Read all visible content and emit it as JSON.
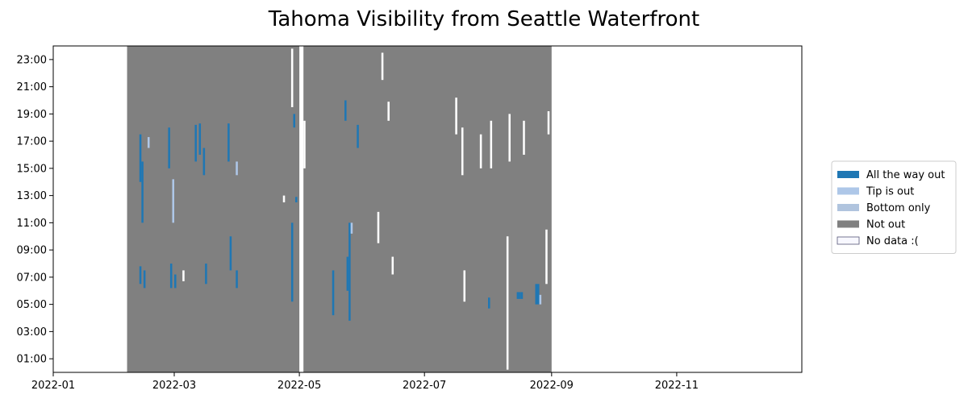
{
  "chart_data": {
    "type": "heatmap",
    "title": "Tahoma Visibility from Seattle Waterfront",
    "x_axis": {
      "type": "date",
      "range": [
        "2022-01-01",
        "2022-12-31"
      ],
      "tick_labels": [
        "2022-01",
        "2022-03",
        "2022-05",
        "2022-07",
        "2022-09",
        "2022-11"
      ],
      "tick_dates": [
        "2022-01-01",
        "2022-03-01",
        "2022-05-01",
        "2022-07-01",
        "2022-09-01",
        "2022-11-01"
      ]
    },
    "y_axis": {
      "unit": "hour of day",
      "range": [
        0,
        24
      ],
      "tick_labels": [
        "01:00",
        "03:00",
        "05:00",
        "07:00",
        "09:00",
        "11:00",
        "13:00",
        "15:00",
        "17:00",
        "19:00",
        "21:00",
        "23:00"
      ],
      "tick_values": [
        1,
        3,
        5,
        7,
        9,
        11,
        13,
        15,
        17,
        19,
        21,
        23
      ]
    },
    "legend": {
      "placement": "right",
      "entries": [
        {
          "label": "All the way out",
          "color": "#1f77b4"
        },
        {
          "label": "Tip is out",
          "color": "#aec7e8"
        },
        {
          "label": "Bottom only",
          "color": "#b0c4de"
        },
        {
          "label": "Not out",
          "color": "#808080"
        },
        {
          "label": "No data :(",
          "color": "#f8f8ff"
        }
      ]
    },
    "base_regions": [
      {
        "category": "Not out",
        "start": "2022-02-06",
        "end": "2022-08-31",
        "hour_start": 0,
        "hour_end": 24
      }
    ],
    "no_data_gaps": [
      {
        "start": "2022-05-01",
        "end": "2022-05-03",
        "hour_start": 0,
        "hour_end": 24
      }
    ],
    "cells": [
      {
        "date": "2022-02-12",
        "hour_start": 14,
        "hour_end": 17.5,
        "category": "All the way out"
      },
      {
        "date": "2022-02-13",
        "hour_start": 11,
        "hour_end": 15.5,
        "category": "All the way out"
      },
      {
        "date": "2022-02-12",
        "hour_start": 6.5,
        "hour_end": 7.8,
        "category": "All the way out"
      },
      {
        "date": "2022-02-14",
        "hour_start": 6.2,
        "hour_end": 7.5,
        "category": "All the way out"
      },
      {
        "date": "2022-02-16",
        "hour_start": 16.5,
        "hour_end": 17.3,
        "category": "Tip is out"
      },
      {
        "date": "2022-02-26",
        "hour_start": 15,
        "hour_end": 18,
        "category": "All the way out"
      },
      {
        "date": "2022-02-27",
        "hour_start": 6.2,
        "hour_end": 8,
        "category": "All the way out"
      },
      {
        "date": "2022-02-28",
        "hour_start": 11,
        "hour_end": 14.2,
        "category": "Tip is out"
      },
      {
        "date": "2022-03-01",
        "hour_start": 6.2,
        "hour_end": 7.2,
        "category": "All the way out"
      },
      {
        "date": "2022-03-11",
        "hour_start": 15.5,
        "hour_end": 18.2,
        "category": "All the way out"
      },
      {
        "date": "2022-03-13",
        "hour_start": 16,
        "hour_end": 18.3,
        "category": "All the way out"
      },
      {
        "date": "2022-03-15",
        "hour_start": 14.5,
        "hour_end": 16.5,
        "category": "All the way out"
      },
      {
        "date": "2022-03-16",
        "hour_start": 6.5,
        "hour_end": 8,
        "category": "All the way out"
      },
      {
        "date": "2022-03-27",
        "hour_start": 15.5,
        "hour_end": 18.3,
        "category": "All the way out"
      },
      {
        "date": "2022-03-28",
        "hour_start": 7.5,
        "hour_end": 10,
        "category": "All the way out"
      },
      {
        "date": "2022-03-31",
        "hour_start": 6.2,
        "hour_end": 7.5,
        "category": "All the way out"
      },
      {
        "date": "2022-03-31",
        "hour_start": 14.5,
        "hour_end": 15.5,
        "category": "Tip is out"
      },
      {
        "date": "2022-04-27",
        "hour_start": 5.2,
        "hour_end": 11,
        "category": "All the way out"
      },
      {
        "date": "2022-04-28",
        "hour_start": 18,
        "hour_end": 19,
        "category": "All the way out"
      },
      {
        "date": "2022-04-29",
        "hour_start": 12.5,
        "hour_end": 12.9,
        "category": "All the way out"
      },
      {
        "date": "2022-05-17",
        "hour_start": 4.2,
        "hour_end": 7.5,
        "category": "All the way out"
      },
      {
        "date": "2022-05-23",
        "hour_start": 18.5,
        "hour_end": 20,
        "category": "All the way out"
      },
      {
        "date": "2022-05-24",
        "hour_start": 6,
        "hour_end": 8.5,
        "category": "All the way out"
      },
      {
        "date": "2022-05-25",
        "hour_start": 3.8,
        "hour_end": 11,
        "category": "All the way out"
      },
      {
        "date": "2022-05-26",
        "hour_start": 10.2,
        "hour_end": 11,
        "category": "Tip is out"
      },
      {
        "date": "2022-05-29",
        "hour_start": 16.5,
        "hour_end": 18.2,
        "category": "All the way out"
      },
      {
        "date": "2022-08-01",
        "hour_start": 4.7,
        "hour_end": 5.5,
        "category": "All the way out"
      },
      {
        "date": "2022-08-15",
        "hour_start": 5.4,
        "hour_end": 5.9,
        "category": "All the way out"
      },
      {
        "date": "2022-08-16",
        "hour_start": 5.4,
        "hour_end": 5.9,
        "category": "All the way out"
      },
      {
        "date": "2022-08-17",
        "hour_start": 5.4,
        "hour_end": 5.9,
        "category": "All the way out"
      },
      {
        "date": "2022-08-24",
        "hour_start": 5.0,
        "hour_end": 6.5,
        "category": "All the way out"
      },
      {
        "date": "2022-08-25",
        "hour_start": 5.0,
        "hour_end": 6.5,
        "category": "All the way out"
      },
      {
        "date": "2022-08-26",
        "hour_start": 5.0,
        "hour_end": 5.7,
        "category": "Tip is out"
      },
      {
        "date": "2022-03-05",
        "hour_start": 6.7,
        "hour_end": 7.5,
        "category": "No data :("
      },
      {
        "date": "2022-04-23",
        "hour_start": 12.5,
        "hour_end": 13,
        "category": "No data :("
      },
      {
        "date": "2022-04-27",
        "hour_start": 19.5,
        "hour_end": 23.8,
        "category": "No data :("
      },
      {
        "date": "2022-05-03",
        "hour_start": 15,
        "hour_end": 18.5,
        "category": "No data :("
      },
      {
        "date": "2022-06-08",
        "hour_start": 9.5,
        "hour_end": 11.8,
        "category": "No data :("
      },
      {
        "date": "2022-06-10",
        "hour_start": 21.5,
        "hour_end": 23.5,
        "category": "No data :("
      },
      {
        "date": "2022-06-13",
        "hour_start": 18.5,
        "hour_end": 19.9,
        "category": "No data :("
      },
      {
        "date": "2022-06-15",
        "hour_start": 7.2,
        "hour_end": 8.5,
        "category": "No data :("
      },
      {
        "date": "2022-07-16",
        "hour_start": 17.5,
        "hour_end": 20.2,
        "category": "No data :("
      },
      {
        "date": "2022-07-19",
        "hour_start": 14.5,
        "hour_end": 18,
        "category": "No data :("
      },
      {
        "date": "2022-07-20",
        "hour_start": 5.2,
        "hour_end": 7.5,
        "category": "No data :("
      },
      {
        "date": "2022-07-28",
        "hour_start": 15,
        "hour_end": 17.5,
        "category": "No data :("
      },
      {
        "date": "2022-08-02",
        "hour_start": 15,
        "hour_end": 18.5,
        "category": "No data :("
      },
      {
        "date": "2022-08-10",
        "hour_start": 0.2,
        "hour_end": 10,
        "category": "No data :("
      },
      {
        "date": "2022-08-11",
        "hour_start": 15.5,
        "hour_end": 19,
        "category": "No data :("
      },
      {
        "date": "2022-08-18",
        "hour_start": 16,
        "hour_end": 18.5,
        "category": "No data :("
      },
      {
        "date": "2022-08-29",
        "hour_start": 6.5,
        "hour_end": 10.5,
        "category": "No data :("
      },
      {
        "date": "2022-08-30",
        "hour_start": 17.5,
        "hour_end": 19.2,
        "category": "No data :("
      }
    ]
  }
}
